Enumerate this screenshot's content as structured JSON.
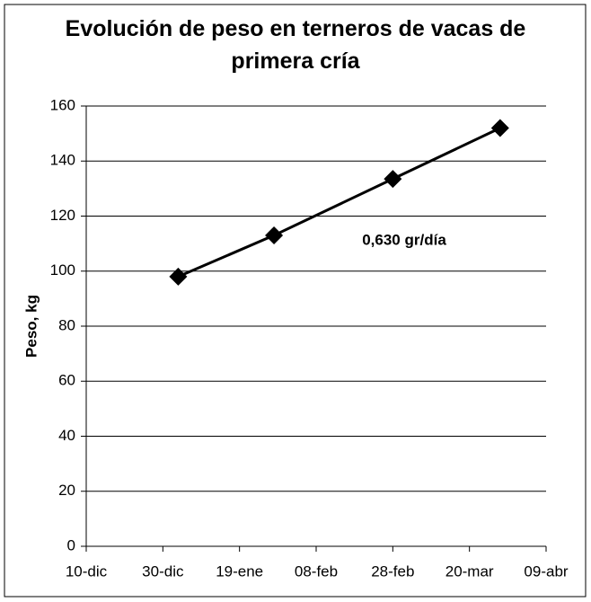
{
  "chart_data": {
    "type": "line",
    "title": "Evolución de peso en terneros de vacas de primera cría",
    "y_label": "Peso, kg",
    "annotation": "0,630 gr/día",
    "x": [
      24,
      49,
      80,
      108
    ],
    "series": [
      {
        "name": "Peso",
        "color": "#000000",
        "values": [
          98,
          113,
          133.5,
          152
        ]
      }
    ],
    "xlim": [
      0,
      120
    ],
    "xticks": [
      {
        "value": 0,
        "label": "10-dic"
      },
      {
        "value": 20,
        "label": "30-dic"
      },
      {
        "value": 40,
        "label": "19-ene"
      },
      {
        "value": 60,
        "label": "08-feb"
      },
      {
        "value": 80,
        "label": "28-feb"
      },
      {
        "value": 100,
        "label": "20-mar"
      },
      {
        "value": 120,
        "label": "09-abr"
      }
    ],
    "ylim": [
      0,
      160
    ],
    "yticks": [
      0,
      20,
      40,
      60,
      80,
      100,
      120,
      140,
      160
    ],
    "grid": true
  }
}
